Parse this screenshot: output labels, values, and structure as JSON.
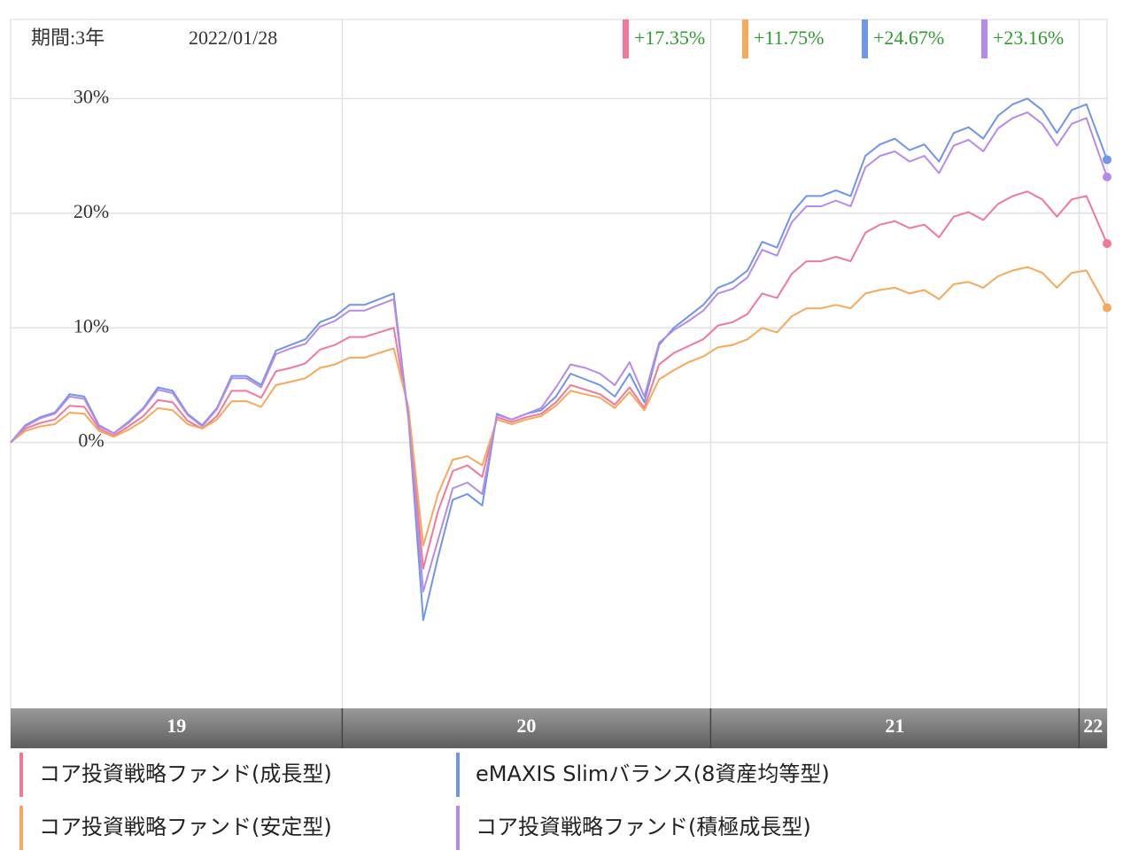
{
  "chart_data": {
    "type": "line",
    "period": "期間:3年",
    "date": "2022/01/28",
    "header_returns": [
      {
        "value": 17.35,
        "label": "+17.35%"
      },
      {
        "value": 11.75,
        "label": "+11.75%"
      },
      {
        "value": 24.67,
        "label": "+24.67%"
      },
      {
        "value": 23.16,
        "label": "+23.16%"
      }
    ],
    "x": [
      19.1,
      19.14,
      19.18,
      19.22,
      19.26,
      19.3,
      19.34,
      19.38,
      19.42,
      19.46,
      19.5,
      19.54,
      19.58,
      19.62,
      19.66,
      19.7,
      19.74,
      19.78,
      19.82,
      19.86,
      19.9,
      19.94,
      19.98,
      20.02,
      20.06,
      20.1,
      20.14,
      20.18,
      20.22,
      20.26,
      20.3,
      20.34,
      20.38,
      20.42,
      20.46,
      20.5,
      20.54,
      20.58,
      20.62,
      20.66,
      20.7,
      20.74,
      20.78,
      20.82,
      20.86,
      20.9,
      20.94,
      20.98,
      21.02,
      21.06,
      21.1,
      21.14,
      21.18,
      21.22,
      21.26,
      21.3,
      21.34,
      21.38,
      21.42,
      21.46,
      21.5,
      21.54,
      21.58,
      21.62,
      21.66,
      21.7,
      21.74,
      21.78,
      21.82,
      21.86,
      21.9,
      21.94,
      21.98,
      22.02,
      22.076
    ],
    "xlim": [
      19.1,
      22.076
    ],
    "xticks": [
      20,
      21,
      22
    ],
    "x_band_labels": [
      "19",
      "20",
      "21",
      "22"
    ],
    "ylim": [
      -23.2,
      36.9
    ],
    "yticks": [
      {
        "value": 0,
        "label": "0%"
      },
      {
        "value": 10,
        "label": "10%"
      },
      {
        "value": 20,
        "label": "20%"
      },
      {
        "value": 30,
        "label": "30%"
      }
    ],
    "grid": true,
    "series": [
      {
        "name": "コア投資戦略ファンド(成長型)",
        "color": "#f0799a",
        "values": [
          0,
          1.2,
          1.7,
          2.0,
          3.2,
          3.1,
          1.2,
          0.6,
          1.4,
          2.3,
          3.7,
          3.5,
          1.9,
          1.2,
          2.3,
          4.5,
          4.5,
          3.9,
          6.2,
          6.5,
          6.9,
          8.1,
          8.5,
          9.2,
          9.2,
          9.6,
          10.0,
          2.5,
          -11.0,
          -6.0,
          -2.5,
          -2.0,
          -3.0,
          2.2,
          1.8,
          2.2,
          2.5,
          3.5,
          5.0,
          4.6,
          4.2,
          3.3,
          4.8,
          3.0,
          6.8,
          7.8,
          8.4,
          9.0,
          10.2,
          10.5,
          11.2,
          13.0,
          12.6,
          14.7,
          15.8,
          15.8,
          16.2,
          15.8,
          18.3,
          19.0,
          19.3,
          18.7,
          19.0,
          17.9,
          19.7,
          20.1,
          19.4,
          20.8,
          21.5,
          21.9,
          21.2,
          19.7,
          21.2,
          21.5,
          17.35
        ]
      },
      {
        "name": "コア投資戦略ファンド(安定型)",
        "color": "#f5a95a",
        "values": [
          0,
          1.0,
          1.4,
          1.6,
          2.6,
          2.5,
          1.0,
          0.5,
          1.1,
          1.9,
          3.0,
          2.8,
          1.6,
          1.2,
          2.0,
          3.6,
          3.6,
          3.1,
          5.0,
          5.3,
          5.6,
          6.5,
          6.8,
          7.4,
          7.4,
          7.8,
          8.2,
          3.0,
          -9.0,
          -4.5,
          -1.5,
          -1.2,
          -2.0,
          2.0,
          1.6,
          2.0,
          2.3,
          3.2,
          4.5,
          4.2,
          3.9,
          3.0,
          4.4,
          2.8,
          5.5,
          6.3,
          7.0,
          7.5,
          8.3,
          8.5,
          9.0,
          10.0,
          9.6,
          11.0,
          11.7,
          11.7,
          12.0,
          11.7,
          13.0,
          13.3,
          13.5,
          13.0,
          13.3,
          12.5,
          13.8,
          14.0,
          13.5,
          14.5,
          15.0,
          15.3,
          14.8,
          13.5,
          14.8,
          15.0,
          11.75
        ]
      },
      {
        "name": "eMAXIS Slimバランス(8資産均等型)",
        "color": "#6f96e8",
        "values": [
          0,
          1.5,
          2.2,
          2.6,
          4.2,
          4.0,
          1.5,
          0.8,
          1.8,
          3.0,
          4.8,
          4.5,
          2.5,
          1.5,
          3.0,
          5.8,
          5.8,
          5.0,
          8.0,
          8.5,
          9.0,
          10.5,
          11.0,
          12.0,
          12.0,
          12.5,
          13.0,
          2.0,
          -15.5,
          -10.0,
          -5.0,
          -4.5,
          -5.5,
          2.5,
          2.0,
          2.5,
          2.8,
          4.0,
          6.0,
          5.5,
          5.0,
          4.0,
          6.0,
          3.5,
          8.5,
          10.0,
          11.0,
          12.0,
          13.5,
          14.0,
          15.0,
          17.5,
          17.0,
          20.0,
          21.5,
          21.5,
          22.0,
          21.5,
          25.0,
          26.0,
          26.5,
          25.5,
          26.0,
          24.5,
          27.0,
          27.5,
          26.5,
          28.5,
          29.5,
          30.0,
          29.0,
          27.0,
          29.0,
          29.5,
          24.67
        ]
      },
      {
        "name": "コア投資戦略ファンド(積極成長型)",
        "color": "#b68ae8",
        "values": [
          0,
          1.4,
          2.1,
          2.5,
          4.0,
          3.8,
          1.4,
          0.8,
          1.7,
          2.9,
          4.6,
          4.3,
          2.4,
          1.4,
          2.9,
          5.6,
          5.6,
          4.8,
          7.7,
          8.2,
          8.6,
          10.1,
          10.6,
          11.5,
          11.5,
          12.0,
          12.5,
          2.0,
          -13.0,
          -8.5,
          -4.0,
          -3.5,
          -4.5,
          2.4,
          2.0,
          2.5,
          3.0,
          4.8,
          6.8,
          6.5,
          6.0,
          5.0,
          7.0,
          4.0,
          8.7,
          9.8,
          10.6,
          11.5,
          13.0,
          13.4,
          14.4,
          16.8,
          16.3,
          19.2,
          20.6,
          20.6,
          21.1,
          20.6,
          24.0,
          25.0,
          25.4,
          24.5,
          25.0,
          23.5,
          25.9,
          26.4,
          25.4,
          27.4,
          28.3,
          28.8,
          27.8,
          25.9,
          27.8,
          28.3,
          23.16
        ]
      }
    ]
  }
}
